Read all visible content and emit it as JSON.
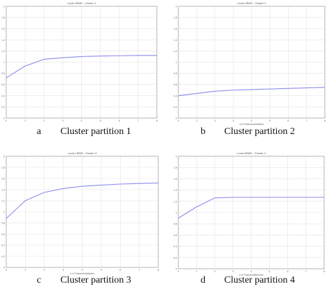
{
  "panels": [
    {
      "letter": "a",
      "caption": "Cluster partition 1",
      "plot_title": "Local nRMR - Cluster 1",
      "xlabel": "",
      "ylabel": ""
    },
    {
      "letter": "b",
      "caption": "Cluster partition 2",
      "plot_title": "Local nRMR - Cluster 2",
      "xlabel": "# of Features/attributes",
      "ylabel": ""
    },
    {
      "letter": "c",
      "caption": "Cluster partition 3",
      "plot_title": "Local nRMR - Cluster 3",
      "xlabel": "# of Features/attributes",
      "ylabel": ""
    },
    {
      "letter": "d",
      "caption": "Cluster partition 4",
      "plot_title": "Local nRMR - Cluster 4",
      "xlabel": "# of Features/attributes",
      "ylabel": ""
    }
  ],
  "chart_data": [
    {
      "type": "line",
      "title": "Local nRMR - Cluster 1",
      "x": [
        0,
        1,
        2,
        3,
        4,
        5,
        6,
        7,
        8
      ],
      "y_ticks": [
        0,
        0.2,
        0.4,
        0.6,
        0.8,
        1,
        1.2,
        1.4,
        1.6,
        1.8,
        2
      ],
      "x_ticks": [
        0,
        1,
        2,
        3,
        4,
        5,
        6,
        7,
        8
      ],
      "ylim": [
        0,
        2
      ],
      "xlim": [
        0,
        8
      ],
      "grid": true,
      "line_color": "#8b8bee",
      "series": [
        {
          "values": [
            0.72,
            0.93,
            1.05,
            1.08,
            1.1,
            1.11,
            1.115,
            1.12,
            1.12
          ]
        }
      ]
    },
    {
      "type": "line",
      "title": "Local nRMR - Cluster 2",
      "x": [
        0,
        1,
        2,
        3,
        4,
        5,
        6,
        7,
        8
      ],
      "y_ticks": [
        0,
        0.2,
        0.4,
        0.6,
        0.8,
        1,
        1.2,
        1.4,
        1.6,
        1.8,
        2
      ],
      "x_ticks": [
        0,
        1,
        2,
        3,
        4,
        5,
        6,
        7,
        8
      ],
      "ylim": [
        0,
        2
      ],
      "xlim": [
        0,
        8
      ],
      "grid": true,
      "line_color": "#8b8bee",
      "series": [
        {
          "values": [
            0.4,
            0.44,
            0.48,
            0.5,
            0.51,
            0.52,
            0.53,
            0.54,
            0.55
          ]
        }
      ]
    },
    {
      "type": "line",
      "title": "Local nRMR - Cluster 3",
      "x": [
        0,
        1,
        2,
        3,
        4,
        5,
        6,
        7,
        8
      ],
      "y_ticks": [
        0,
        0.2,
        0.4,
        0.6,
        0.8,
        1,
        1.2,
        1.4,
        1.6,
        1.8,
        2
      ],
      "x_ticks": [
        0,
        1,
        2,
        3,
        4,
        5,
        6,
        7,
        8
      ],
      "ylim": [
        0,
        2
      ],
      "xlim": [
        0,
        8
      ],
      "grid": true,
      "line_color": "#8b8bee",
      "series": [
        {
          "values": [
            0.88,
            1.2,
            1.35,
            1.42,
            1.46,
            1.48,
            1.5,
            1.51,
            1.52
          ]
        }
      ]
    },
    {
      "type": "line",
      "title": "Local nRMR - Cluster 4",
      "x": [
        0,
        1,
        2,
        3,
        4,
        5,
        6,
        7,
        8
      ],
      "y_ticks": [
        0,
        0.2,
        0.4,
        0.6,
        0.8,
        1,
        1.2,
        1.4,
        1.6,
        1.8,
        2
      ],
      "x_ticks": [
        0,
        1,
        2,
        3,
        4,
        5,
        6,
        7,
        8
      ],
      "ylim": [
        0,
        2
      ],
      "xlim": [
        0,
        8
      ],
      "grid": true,
      "line_color": "#8b8bee",
      "series": [
        {
          "values": [
            0.9,
            1.1,
            1.26,
            1.27,
            1.27,
            1.27,
            1.27,
            1.27,
            1.27
          ]
        }
      ]
    }
  ]
}
